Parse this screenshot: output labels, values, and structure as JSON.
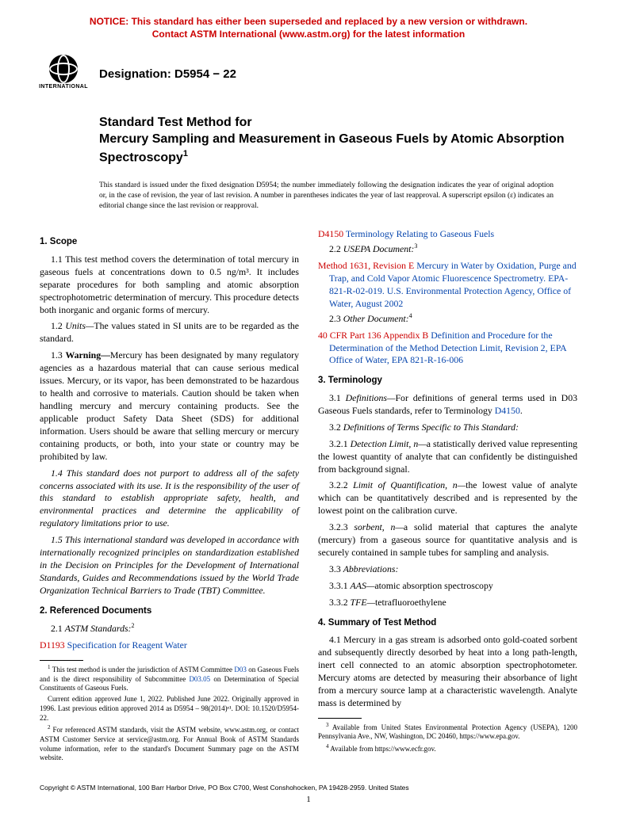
{
  "notice": {
    "line1": "NOTICE: This standard has either been superseded and replaced by a new version or withdrawn.",
    "line2": "Contact ASTM International (www.astm.org) for the latest information",
    "color": "#cc0000"
  },
  "logo_text": "INTERNATIONAL",
  "designation": "Designation: D5954 − 22",
  "title_lead": "Standard Test Method for",
  "title_main": "Mercury Sampling and Measurement in Gaseous Fuels by Atomic Absorption Spectroscopy",
  "title_sup": "1",
  "issuance": "This standard is issued under the fixed designation D5954; the number immediately following the designation indicates the year of original adoption or, in the case of revision, the year of last revision. A number in parentheses indicates the year of last reapproval. A superscript epsilon (ε) indicates an editorial change since the last revision or reapproval.",
  "left": {
    "sec1_head": "1. Scope",
    "p1_1": "1.1 This test method covers the determination of total mercury in gaseous fuels at concentrations down to 0.5 ng/m³. It includes separate procedures for both sampling and atomic absorption spectrophotometric determination of mercury. This procedure detects both inorganic and organic forms of mercury.",
    "p1_2_lead": "1.2 ",
    "p1_2_ital": "Units—",
    "p1_2_rest": "The values stated in SI units are to be regarded as the standard.",
    "p1_3_lead": "1.3 ",
    "p1_3_bold": "Warning—",
    "p1_3_rest": "Mercury has been designated by many regulatory agencies as a hazardous material that can cause serious medical issues. Mercury, or its vapor, has been demonstrated to be hazardous to health and corrosive to materials. Caution should be taken when handling mercury and mercury containing products. See the applicable product Safety Data Sheet (SDS) for additional information. Users should be aware that selling mercury or mercury containing products, or both, into your state or country may be prohibited by law.",
    "p1_4": "1.4 This standard does not purport to address all of the safety concerns associated with its use. It is the responsibility of the user of this standard to establish appropriate safety, health, and environmental practices and determine the applicability of regulatory limitations prior to use.",
    "p1_5": "1.5 This international standard was developed in accordance with internationally recognized principles on standardization established in the Decision on Principles for the Development of International Standards, Guides and Recommendations issued by the World Trade Organization Technical Barriers to Trade (TBT) Committee.",
    "sec2_head": "2. Referenced Documents",
    "p2_1_lead": "2.1 ",
    "p2_1_ital": "ASTM Standards:",
    "p2_1_sup": "2",
    "d1193_code": "D1193",
    "d1193_title": "Specification for Reagent Water",
    "fn1_a": " This test method is under the jurisdiction of ASTM Committee ",
    "fn1_link1": "D03",
    "fn1_b": " on Gaseous Fuels and is the direct responsibility of Subcommittee ",
    "fn1_link2": "D03.05",
    "fn1_c": " on Determination of Special Constituents of Gaseous Fuels.",
    "fn1_d": "Current edition approved June 1, 2022. Published June 2022. Originally approved in 1996. Last previous edition approved 2014 as D5954 – 98(2014)ᵉ¹. DOI: 10.1520/D5954-22.",
    "fn2": " For referenced ASTM standards, visit the ASTM website, www.astm.org, or contact ASTM Customer Service at service@astm.org. For Annual Book of ASTM Standards volume information, refer to the standard's Document Summary page on the ASTM website."
  },
  "right": {
    "d4150_code": "D4150",
    "d4150_title": "Terminology Relating to Gaseous Fuels",
    "p2_2_lead": "2.2 ",
    "p2_2_ital": "USEPA Document:",
    "p2_2_sup": "3",
    "m1631_code": "Method 1631, Revision E",
    "m1631_title": "Mercury in Water by Oxidation, Purge and Trap, and Cold Vapor Atomic Fluorescence Spectrometry. EPA-821-R-02-019. U.S. Environmental Protection Agency, Office of Water, August 2002",
    "p2_3_lead": "2.3 ",
    "p2_3_ital": "Other Document:",
    "p2_3_sup": "4",
    "cfr_code": "40 CFR Part 136 Appendix B",
    "cfr_title": "Definition and Procedure for the Determination of the Method Detection Limit, Revision 2, EPA Office of Water, EPA 821-R-16-006",
    "sec3_head": "3. Terminology",
    "p3_1_lead": "3.1 ",
    "p3_1_ital": "Definitions—",
    "p3_1_rest": "For definitions of general terms used in D03 Gaseous Fuels standards, refer to Terminology ",
    "p3_1_link": "D4150",
    "p3_2_lead": "3.2 ",
    "p3_2_ital": "Definitions of Terms Specific to This Standard:",
    "p3_2_1_lead": "3.2.1 ",
    "p3_2_1_term": "Detection Limit, n—",
    "p3_2_1_def": "a statistically derived value representing the lowest quantity of analyte that can confidently be distinguished from background signal.",
    "p3_2_2_lead": "3.2.2 ",
    "p3_2_2_term": "Limit of Quantification, n—",
    "p3_2_2_def": "the lowest value of analyte which can be quantitatively described and is represented by the lowest point on the calibration curve.",
    "p3_2_3_lead": "3.2.3 ",
    "p3_2_3_term": "sorbent, n—",
    "p3_2_3_def": "a solid material that captures the analyte (mercury) from a gaseous source for quantitative analysis and is securely contained in sample tubes for sampling and analysis.",
    "p3_3_lead": "3.3 ",
    "p3_3_ital": "Abbreviations:",
    "p3_3_1_lead": "3.3.1 ",
    "p3_3_1_term": "AAS—",
    "p3_3_1_def": "atomic absorption spectroscopy",
    "p3_3_2_lead": "3.3.2 ",
    "p3_3_2_term": "TFE—",
    "p3_3_2_def": "tetrafluoroethylene",
    "sec4_head": "4. Summary of Test Method",
    "p4_1": "4.1 Mercury in a gas stream is adsorbed onto gold-coated sorbent and subsequently directly desorbed by heat into a long path-length, inert cell connected to an atomic absorption spectrophotometer. Mercury atoms are detected by measuring their absorbance of light from a mercury source lamp at a characteristic wavelength. Analyte mass is determined by",
    "fn3": " Available from United States Environmental Protection Agency (USEPA), 1200 Pennsylvania Ave., NW, Washington, DC 20460, https://www.epa.gov.",
    "fn4": " Available from https://www.ecfr.gov."
  },
  "copyright": "Copyright © ASTM International, 100 Barr Harbor Drive, PO Box C700, West Conshohocken, PA 19428-2959. United States",
  "pagenum": "1",
  "colors": {
    "notice_red": "#cc0000",
    "link_blue": "#0645ad",
    "link_red": "#cc0000",
    "text": "#000000",
    "bg": "#ffffff"
  },
  "typography": {
    "body_font": "Times New Roman",
    "heading_font": "Arial",
    "body_size_pt": 11.8,
    "heading_size_pt": 11.5,
    "title_size_pt": 16,
    "notice_size_pt": 12,
    "footnote_size_pt": 9,
    "copyright_size_pt": 8.5
  }
}
